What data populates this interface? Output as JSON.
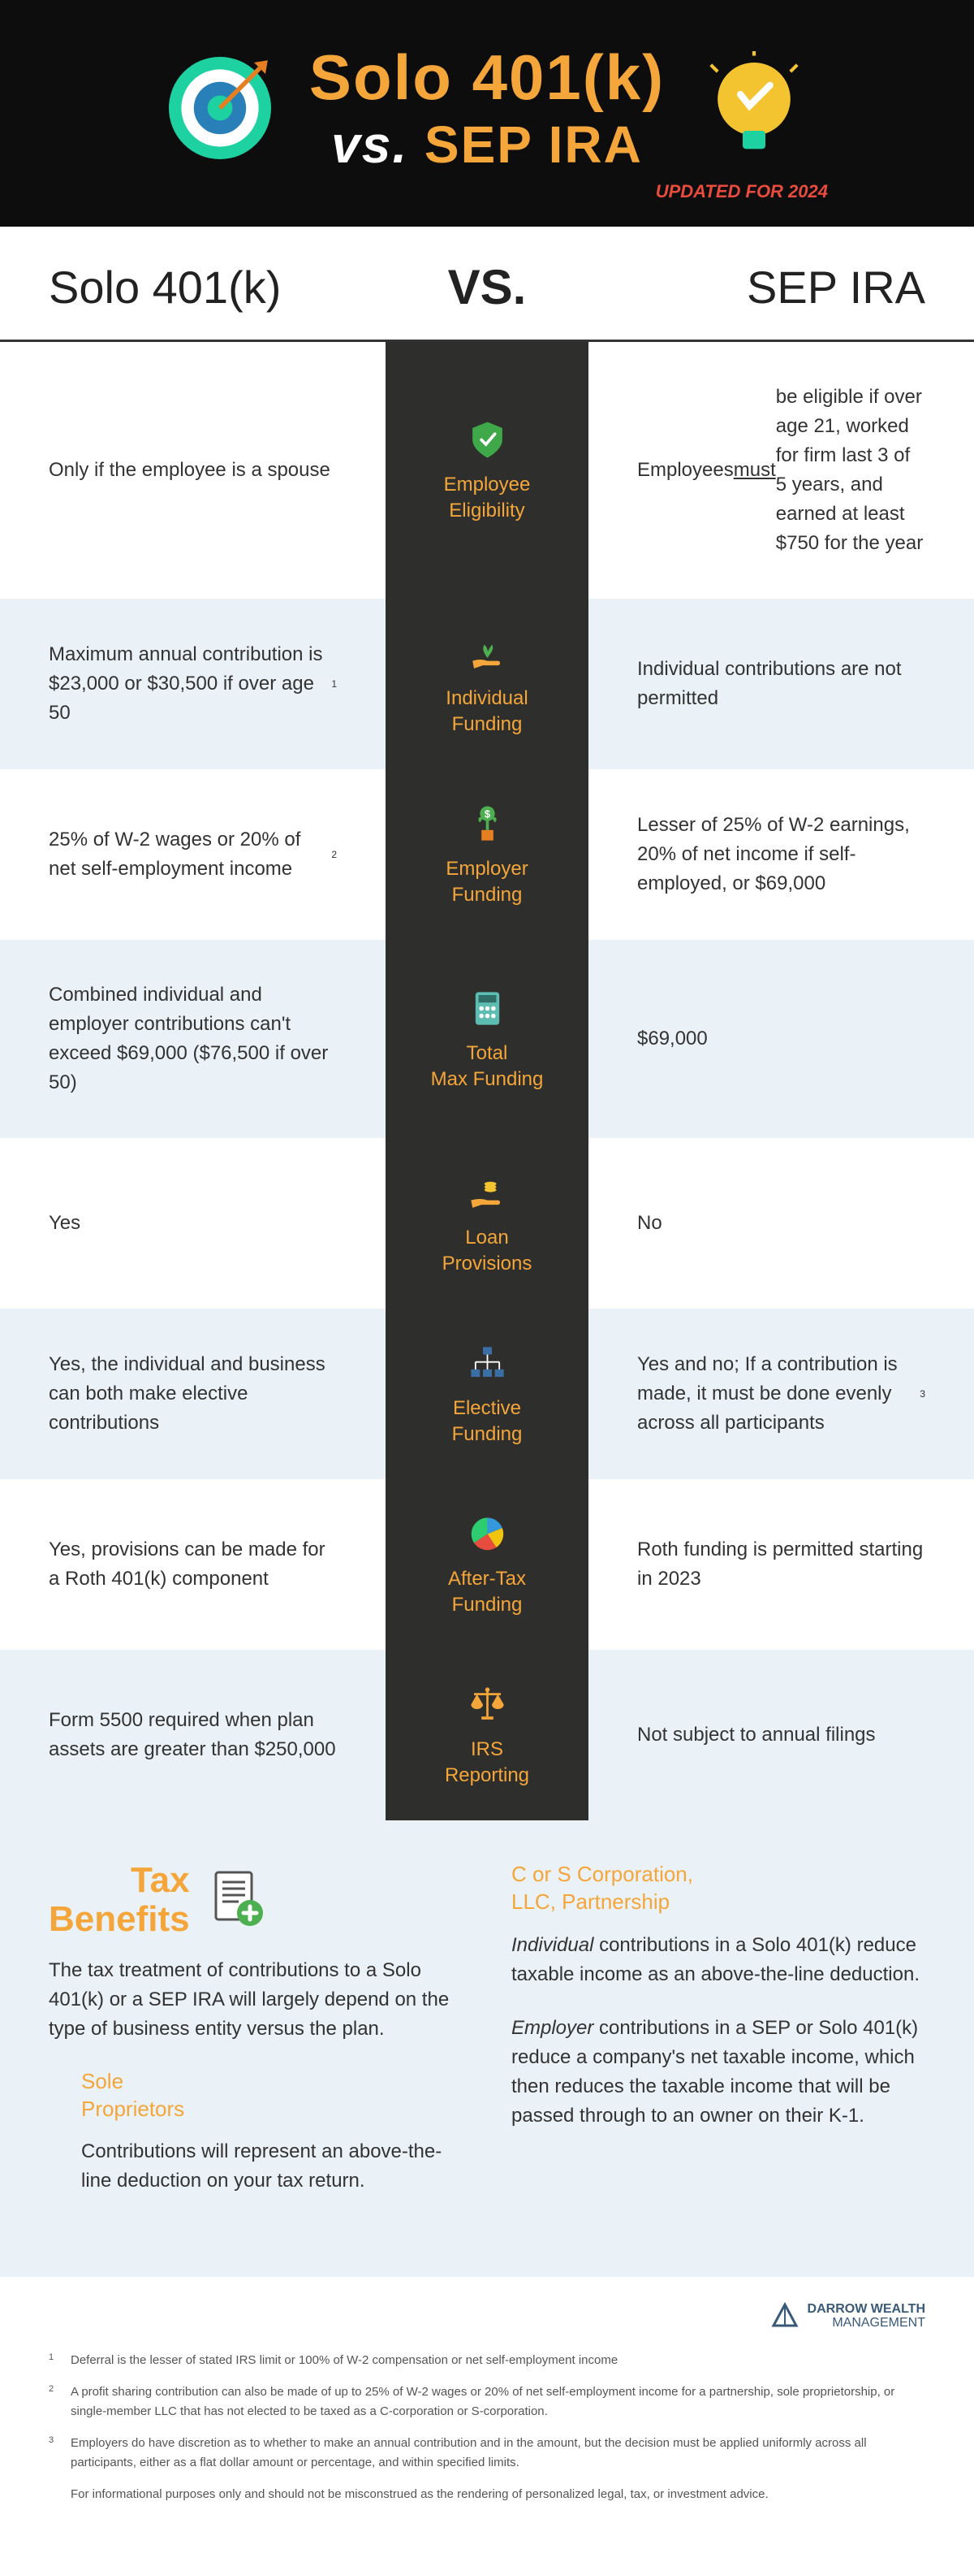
{
  "header": {
    "title1": "Solo 401(k)",
    "title2_prefix": "vs.",
    "title2": "SEP IRA",
    "updated": "UPDATED FOR 2024"
  },
  "subheader": {
    "left": "Solo 401(k)",
    "mid": "VS.",
    "right": "SEP IRA"
  },
  "rows": [
    {
      "left": "Only if the employee is a spouse",
      "category": "Employee Eligibility",
      "right_html": "Employees <span class='underline'>must</span> be eligible if over age 21, worked for firm last 3 of 5 years, and earned at least $750 for the year",
      "icon": "shield"
    },
    {
      "left_html": "Maximum annual contribution is $23,000 or $30,500 if over age 50<span class='sup'>1</span>",
      "category": "Individual Funding",
      "right": "Individual contributions are not permitted",
      "icon": "hand-plant"
    },
    {
      "left_html": "25% of W-2 wages or 20% of net self-employment income<span class='sup'>2</span>",
      "category": "Employer Funding",
      "right": "Lesser of 25% of W-2 earnings, 20% of net income if self-employed, or $69,000",
      "icon": "money-plant"
    },
    {
      "left": "Combined individual and employer contributions can't exceed $69,000 ($76,500 if over 50)",
      "category": "Total Max Funding",
      "right": "$69,000",
      "icon": "calculator"
    },
    {
      "left": "Yes",
      "category": "Loan Provisions",
      "right": "No",
      "icon": "hand-coins"
    },
    {
      "left": "Yes, the individual and business can both make elective contributions",
      "category": "Elective Funding",
      "right_html": "Yes and no; If a contribution is made, it must be done evenly across all participants<span class='sup'>3</span>",
      "icon": "org-chart"
    },
    {
      "left": "Yes, provisions can be made for a Roth 401(k) component",
      "category": "After-Tax Funding",
      "right": "Roth funding is permitted starting in 2023",
      "icon": "pie"
    },
    {
      "left": "Form 5500 required when plan assets are greater than $250,000",
      "category": "IRS Reporting",
      "right": "Not subject to annual filings",
      "icon": "scales"
    }
  ],
  "tax": {
    "title": "Tax Benefits",
    "intro": "The tax treatment of contributions to a Solo 401(k) or a SEP IRA will largely depend on the type of business entity versus the plan.",
    "sole_head": "Sole Proprietors",
    "sole_text": "Contributions will represent an above-the-line deduction on your tax return.",
    "corp_head": "C or S Corporation, LLC, Partnership",
    "corp_p1_html": "<span class='italic'>Individual</span> contributions in a Solo 401(k) reduce taxable income as an above-the-line deduction.",
    "corp_p2_html": "<span class='italic'>Employer</span> contributions in a SEP or Solo 401(k) reduce a company's net taxable income, which then reduces the taxable income that will be passed through to an owner on their K-1."
  },
  "footer": {
    "logo1": "DARROW WEALTH",
    "logo2": "MANAGEMENT",
    "footnotes": [
      {
        "n": "1",
        "t": "Deferral is the lesser of stated IRS limit or 100% of W-2 compensation or net self-employment income"
      },
      {
        "n": "2",
        "t": "A profit sharing contribution can also be made of up to 25% of W-2 wages or 20% of net self-employment income for a partnership, sole proprietorship, or single-member LLC that has not elected to be taxed as a C-corporation or S-corporation."
      },
      {
        "n": "3",
        "t": "Employers do have discretion as to whether to make an annual contribution and in the amount, but the decision must be applied uniformly across all participants, either as a flat dollar amount or percentage, and within specified limits."
      }
    ],
    "disclaimer": "For informational purposes only and should not be misconstrued as the rendering of personalized legal, tax, or investment advice."
  },
  "icons": {
    "shield_fill": "#3fa849",
    "hand_fill": "#f4a63a",
    "plant_green": "#4caf50",
    "money_green": "#4caf50",
    "calc_teal": "#5ebdb2",
    "org_blue": "#3a6ea5",
    "pie_colors": [
      "#e74c3c",
      "#3498db",
      "#f1c40f",
      "#2ecc71"
    ],
    "scales_gold": "#f4a63a",
    "target_teal": "#1dd1a1",
    "target_ring2": "#ffffff",
    "target_ring3": "#2980b9",
    "bulb_yellow": "#f4c430",
    "bulb_base": "#1dd1a1"
  }
}
